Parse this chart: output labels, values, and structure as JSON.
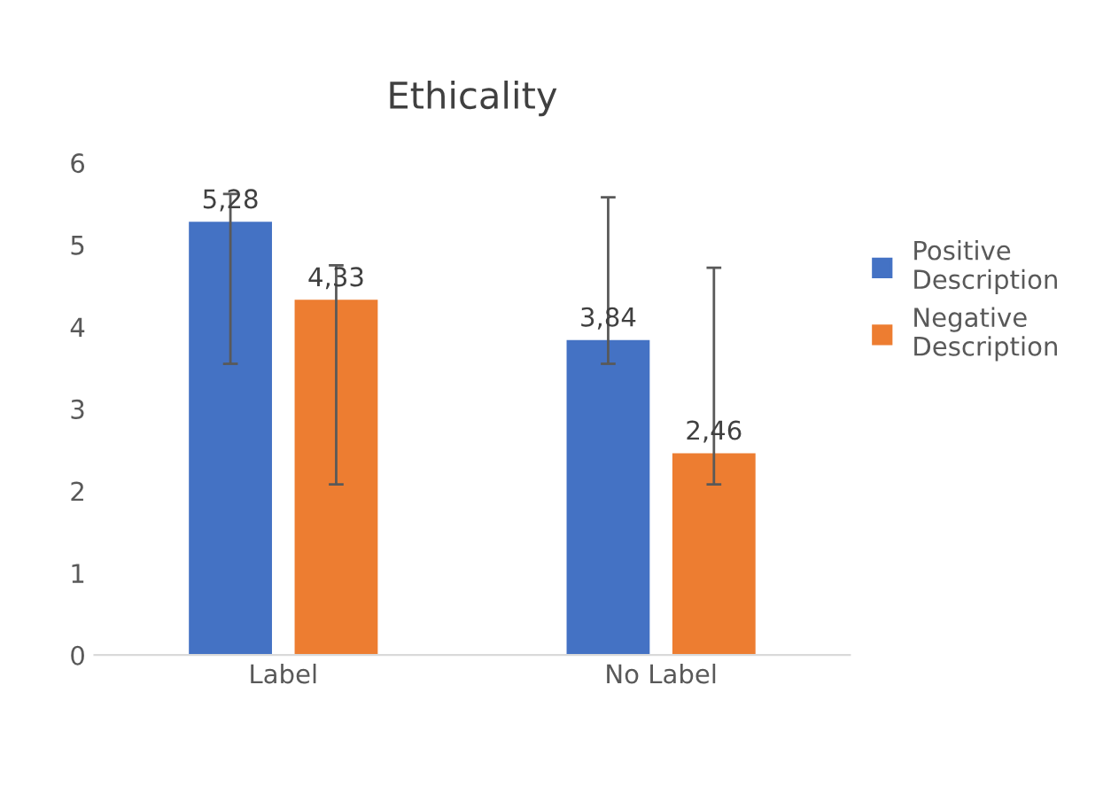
{
  "chart_data": {
    "type": "bar",
    "title": "Ethicality",
    "categories": [
      "Label",
      "No Label"
    ],
    "series": [
      {
        "name": "Positive Description",
        "color": "#4472c4",
        "values": [
          5.28,
          3.84
        ],
        "value_labels": [
          "5,28",
          "3,84"
        ],
        "errors": [
          [
            3.55,
            5.62
          ],
          [
            3.55,
            5.58
          ]
        ]
      },
      {
        "name": "Negative Description",
        "color": "#ed7d31",
        "values": [
          4.33,
          2.46
        ],
        "value_labels": [
          "4,33",
          "2,46"
        ],
        "errors": [
          [
            2.08,
            4.75
          ],
          [
            2.08,
            4.72
          ]
        ]
      }
    ],
    "ylim": [
      0,
      6
    ],
    "yticks": [
      0,
      1,
      2,
      3,
      4,
      5,
      6
    ],
    "grid": false,
    "legend": "right"
  }
}
